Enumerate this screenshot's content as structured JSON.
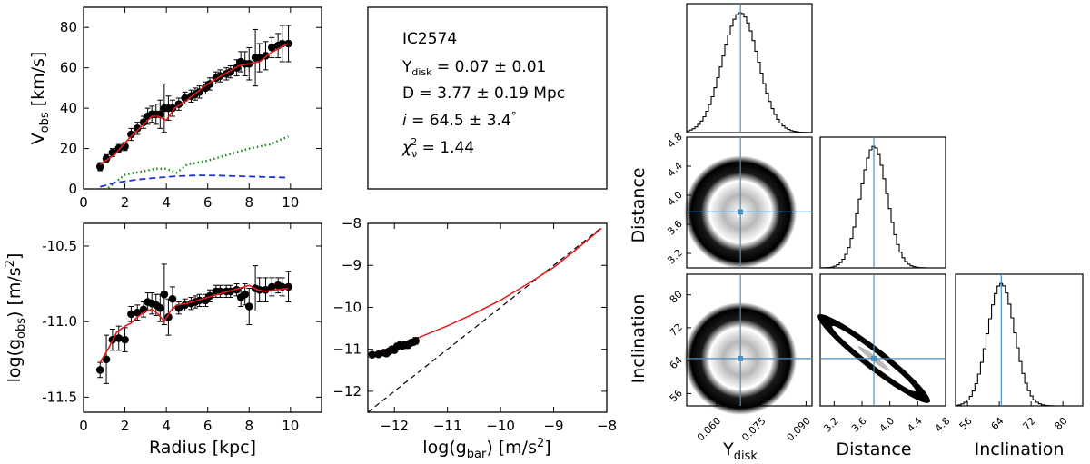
{
  "chart_data": [
    {
      "id": "rotation_curve",
      "type": "scatter",
      "title": "",
      "xlabel": "",
      "ylabel": "V_obs [km/s]",
      "ylabel_main": "V",
      "ylabel_sub": "obs",
      "ylabel_tail": " [km/s]",
      "xlim": [
        0,
        11.5
      ],
      "ylim": [
        0,
        90
      ],
      "xticks": [
        "0",
        "2",
        "4",
        "6",
        "8",
        "10"
      ],
      "yticks": [
        "0",
        "20",
        "40",
        "60",
        "80"
      ],
      "series": [
        {
          "name": "observed",
          "style": "points-errorbars",
          "x": [
            0.8,
            1.1,
            1.4,
            1.7,
            2.0,
            2.3,
            2.6,
            2.9,
            3.1,
            3.3,
            3.5,
            3.7,
            3.9,
            4.1,
            4.3,
            4.6,
            4.9,
            5.2,
            5.4,
            5.6,
            5.9,
            6.1,
            6.4,
            6.6,
            6.9,
            7.1,
            7.4,
            7.6,
            7.8,
            8.0,
            8.3,
            8.5,
            8.8,
            9.1,
            9.4,
            9.6,
            9.9
          ],
          "y": [
            11,
            15,
            18,
            20,
            21,
            27,
            30,
            33,
            36,
            37,
            37,
            37,
            40,
            40,
            40,
            42,
            45,
            46,
            47,
            48,
            50,
            52,
            55,
            56,
            57,
            58,
            60,
            63,
            62,
            62,
            65,
            65,
            66,
            70,
            71,
            72,
            72
          ],
          "yerr": [
            2,
            2,
            2,
            2,
            2,
            3,
            3,
            3,
            4,
            4,
            5,
            7,
            12,
            6,
            4,
            3,
            3,
            3,
            3,
            3,
            3,
            3,
            3,
            3,
            3,
            3,
            4,
            5,
            6,
            8,
            14,
            7,
            7,
            5,
            6,
            9,
            9
          ]
        },
        {
          "name": "model fit",
          "style": "red-line",
          "x": [
            0.8,
            1.5,
            2.2,
            2.8,
            3.3,
            3.6,
            4.0,
            4.4,
            5.0,
            6.0,
            7.0,
            7.5,
            8.0,
            8.5,
            9.0,
            9.5,
            9.9
          ],
          "y": [
            12,
            17,
            25,
            31,
            36,
            36,
            34,
            40,
            44,
            52,
            58,
            61,
            62,
            63,
            67,
            70,
            72
          ]
        },
        {
          "name": "gas",
          "style": "green-dotted",
          "x": [
            1.2,
            2.0,
            3.0,
            3.5,
            4.0,
            4.5,
            5.0,
            6.0,
            7.0,
            8.0,
            9.0,
            9.9
          ],
          "y": [
            0.5,
            7,
            9,
            10,
            10,
            8,
            12,
            14,
            17,
            20,
            22,
            26
          ]
        },
        {
          "name": "disk",
          "style": "blue-dashed",
          "x": [
            0.8,
            1.5,
            2.5,
            3.5,
            4.5,
            5.5,
            6.5,
            7.5,
            8.5,
            9.9
          ],
          "y": [
            1,
            3,
            4.5,
            5.5,
            6.3,
            6.7,
            6.6,
            6.3,
            6.0,
            5.6
          ]
        }
      ]
    },
    {
      "id": "acceleration_radius",
      "type": "scatter",
      "title": "",
      "xlabel": "Radius [kpc]",
      "ylabel": "log(g_obs) [m/s^2]",
      "ylabel_main": "log(g",
      "ylabel_sub": "obs",
      "ylabel_tail": ") [m/s",
      "ylabel_sup": "2",
      "ylabel_end": "]",
      "xlim": [
        0,
        11.5
      ],
      "ylim": [
        -11.6,
        -10.35
      ],
      "xticks": [
        "0",
        "2",
        "4",
        "6",
        "8",
        "10"
      ],
      "yticks": [
        "-11.5",
        "-11.0",
        "-10.5"
      ],
      "series": [
        {
          "name": "observed",
          "style": "points-errorbars",
          "x": [
            0.8,
            1.1,
            1.4,
            1.7,
            2.0,
            2.3,
            2.6,
            2.9,
            3.1,
            3.3,
            3.5,
            3.7,
            3.9,
            4.1,
            4.3,
            4.6,
            4.9,
            5.2,
            5.4,
            5.6,
            5.9,
            6.1,
            6.4,
            6.6,
            6.9,
            7.1,
            7.4,
            7.6,
            7.8,
            8.0,
            8.3,
            8.5,
            8.8,
            9.1,
            9.4,
            9.6,
            9.9
          ],
          "y": [
            -11.32,
            -11.25,
            -11.12,
            -11.11,
            -11.12,
            -10.95,
            -10.94,
            -10.92,
            -10.87,
            -10.88,
            -10.89,
            -10.91,
            -10.82,
            -10.97,
            -10.85,
            -10.91,
            -10.89,
            -10.88,
            -10.87,
            -10.86,
            -10.86,
            -10.83,
            -10.8,
            -10.8,
            -10.8,
            -10.8,
            -10.79,
            -10.84,
            -10.82,
            -10.9,
            -10.78,
            -10.79,
            -10.79,
            -10.77,
            -10.76,
            -10.77,
            -10.77
          ],
          "yerr": [
            0.05,
            0.16,
            0.07,
            0.08,
            0.08,
            0.05,
            0.05,
            0.05,
            0.06,
            0.07,
            0.07,
            0.09,
            0.2,
            0.12,
            0.08,
            0.04,
            0.04,
            0.04,
            0.04,
            0.04,
            0.04,
            0.04,
            0.04,
            0.04,
            0.04,
            0.04,
            0.04,
            0.06,
            0.07,
            0.12,
            0.15,
            0.08,
            0.08,
            0.06,
            0.05,
            0.06,
            0.1
          ]
        },
        {
          "name": "model fit",
          "style": "red-line",
          "x": [
            0.8,
            1.2,
            1.6,
            2.0,
            2.3,
            2.6,
            3.0,
            3.3,
            3.6,
            3.9,
            4.2,
            4.5,
            5.0,
            5.5,
            6.0,
            6.5,
            7.0,
            7.5,
            8.0,
            8.4,
            8.8,
            9.3,
            9.9
          ],
          "y": [
            -11.27,
            -11.18,
            -11.07,
            -11.03,
            -11.01,
            -10.97,
            -10.93,
            -10.92,
            -10.95,
            -11.0,
            -10.93,
            -10.89,
            -10.88,
            -10.86,
            -10.84,
            -10.82,
            -10.8,
            -10.78,
            -10.76,
            -10.79,
            -10.8,
            -10.79,
            -10.78
          ]
        }
      ]
    },
    {
      "id": "rar",
      "type": "scatter",
      "title": "",
      "xlabel": "log(g_bar) [m/s^2]",
      "xlabel_main": "log(g",
      "xlabel_sub": "bar",
      "xlabel_tail": ") [m/s",
      "xlabel_sup": "2",
      "xlabel_end": "]",
      "ylabel": "",
      "xlim": [
        -12.5,
        -8
      ],
      "ylim": [
        -12.5,
        -8
      ],
      "xticks": [
        "−12",
        "−11",
        "−10",
        "−9",
        "−8"
      ],
      "yticks": [
        "−12",
        "−11",
        "−10",
        "−9",
        "−8"
      ],
      "series": [
        {
          "name": "observed",
          "style": "points-errorbars",
          "x": [
            -12.42,
            -12.3,
            -12.2,
            -12.15,
            -12.1,
            -12.05,
            -12.0,
            -11.95,
            -11.9,
            -11.85,
            -11.8,
            -11.75,
            -11.7,
            -11.65,
            -11.6
          ],
          "y": [
            -11.13,
            -11.12,
            -11.08,
            -11.1,
            -11.05,
            -11.0,
            -11.02,
            -10.93,
            -10.9,
            -10.92,
            -10.88,
            -10.9,
            -10.85,
            -10.83,
            -10.8
          ],
          "yerr": [
            0.05,
            0.05,
            0.06,
            0.05,
            0.05,
            0.05,
            0.06,
            0.07,
            0.06,
            0.06,
            0.07,
            0.08,
            0.06,
            0.07,
            0.08
          ]
        },
        {
          "name": "RAR fit",
          "style": "red-line",
          "x": [
            -12.5,
            -12.0,
            -11.5,
            -11.0,
            -10.5,
            -10.0,
            -9.5,
            -9.0,
            -8.5,
            -8.1
          ],
          "y": [
            -11.15,
            -10.93,
            -10.7,
            -10.44,
            -10.15,
            -9.83,
            -9.45,
            -9.05,
            -8.54,
            -8.12
          ]
        },
        {
          "name": "1:1 line",
          "style": "black-dashed",
          "x": [
            -12.5,
            -8.1
          ],
          "y": [
            -12.5,
            -8.1
          ]
        }
      ]
    },
    {
      "id": "posterior_corner",
      "type": "heatmap",
      "title": "",
      "parameters": [
        "Υdisk",
        "Distance",
        "Inclination"
      ],
      "best_fit": {
        "Υdisk": 0.068,
        "Distance": 3.77,
        "Inclination": 64.5
      },
      "ranges": {
        "Υdisk": [
          0.05,
          0.092
        ],
        "Distance": [
          3.0,
          4.8
        ],
        "Inclination": [
          53,
          85
        ]
      },
      "axis_ticks": {
        "Υdisk": [
          "0.060",
          "0.075",
          "0.090"
        ],
        "Distance": [
          "3.2",
          "3.6",
          "4.0",
          "4.4",
          "4.8"
        ],
        "Inclination": [
          "56",
          "64",
          "72",
          "80"
        ]
      },
      "histogram_sigmas": {
        "Υdisk": 0.006,
        "Distance": 0.19,
        "Inclination": 3.4
      },
      "xlabels": {
        "Υ": "Υ",
        "sub": "disk",
        "distance": "Distance",
        "inclination": "Inclination"
      },
      "ylabels": {
        "distance": "Distance",
        "inclination": "Inclination"
      }
    }
  ],
  "info_box": {
    "galaxy": "IC2574",
    "ups_sym": "Υ",
    "ups_sub": "disk",
    "ups_val": " = 0.07 ± 0.01",
    "distance": "D = 3.77 ± 0.19 Mpc",
    "incl_sym": "i",
    "incl_val": " = 64.5 ± 3.4",
    "incl_deg": "°",
    "chi_sym": "χ",
    "chi_sub": "ν",
    "chi_sup": "2",
    "chi_val": " = 1.44"
  },
  "colors": {
    "model": "#e41a1c",
    "gas": "#1a8a1a",
    "disk": "#1f2fe0",
    "bestfit": "#4a90c0"
  }
}
